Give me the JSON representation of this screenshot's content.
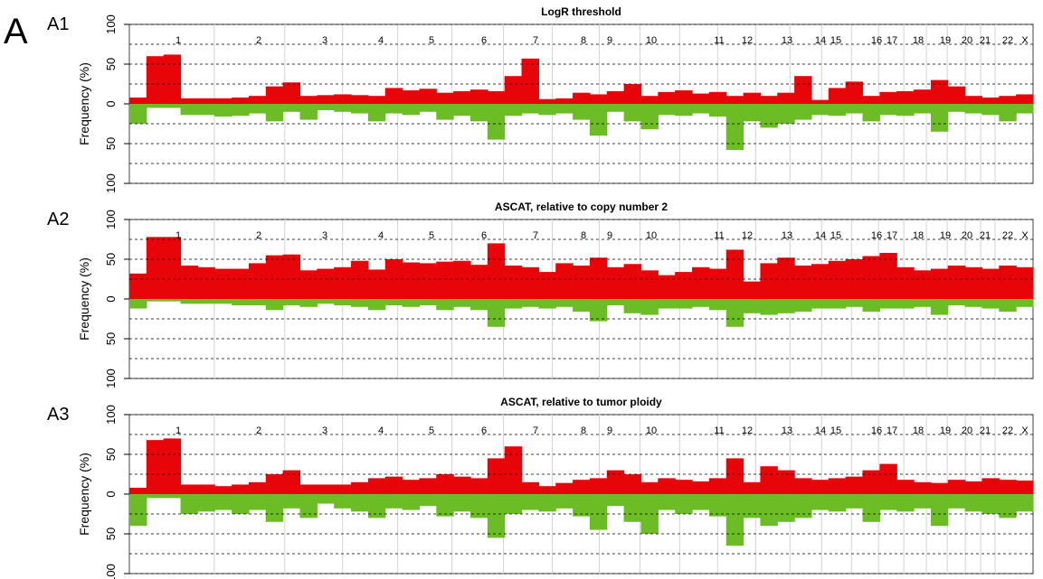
{
  "figure_letter": "A",
  "colors": {
    "gain": "#e8050a",
    "loss": "#6cbd25",
    "grid": "#000000",
    "chrom_sep": "#d3d3d3",
    "frame": "#444444"
  },
  "chart_data": [
    {
      "panel": "A1",
      "type": "area",
      "title": "LogR threshold",
      "ylabel": "Frequency (%)",
      "ylim": [
        -100,
        100
      ],
      "yticks": [
        "100",
        "50",
        "0",
        "50",
        "100"
      ],
      "dashed_grid": [
        -100,
        -75,
        -50,
        -25,
        25,
        50,
        75,
        100
      ],
      "chromosomes": [
        "1",
        "2",
        "3",
        "4",
        "5",
        "6",
        "7",
        "8",
        "9",
        "10",
        "11",
        "12",
        "13",
        "14",
        "15",
        "16",
        "17",
        "18",
        "19",
        "20",
        "21",
        "22",
        "X"
      ],
      "gain": [
        8,
        60,
        62,
        7,
        7,
        7,
        8,
        10,
        22,
        27,
        10,
        11,
        12,
        11,
        10,
        20,
        17,
        19,
        14,
        16,
        18,
        16,
        35,
        57,
        6,
        7,
        14,
        12,
        16,
        25,
        10,
        15,
        17,
        13,
        15,
        10,
        14,
        10,
        14,
        35,
        5,
        20,
        28,
        10,
        15,
        16,
        18,
        30,
        22,
        10,
        8,
        10,
        12
      ],
      "loss": [
        25,
        5,
        5,
        14,
        14,
        16,
        15,
        12,
        22,
        10,
        20,
        8,
        10,
        12,
        22,
        12,
        14,
        10,
        20,
        15,
        22,
        45,
        15,
        12,
        14,
        12,
        20,
        40,
        10,
        22,
        32,
        14,
        15,
        12,
        16,
        58,
        22,
        30,
        25,
        20,
        14,
        15,
        12,
        22,
        14,
        15,
        12,
        35,
        10,
        12,
        14,
        22,
        12
      ]
    },
    {
      "panel": "A2",
      "type": "area",
      "title": "ASCAT, relative to copy number 2",
      "ylabel": "Frequency (%)",
      "ylim": [
        -100,
        100
      ],
      "yticks": [
        "100",
        "50",
        "0",
        "50",
        "100"
      ],
      "dashed_grid": [
        -100,
        -75,
        -50,
        -25,
        25,
        50,
        75,
        100
      ],
      "chromosomes": [
        "1",
        "2",
        "3",
        "4",
        "5",
        "6",
        "7",
        "8",
        "9",
        "10",
        "11",
        "12",
        "13",
        "14",
        "15",
        "16",
        "17",
        "18",
        "19",
        "20",
        "21",
        "22",
        "X"
      ],
      "gain": [
        32,
        78,
        78,
        42,
        40,
        38,
        38,
        45,
        55,
        56,
        36,
        38,
        40,
        48,
        37,
        50,
        46,
        45,
        47,
        48,
        43,
        70,
        42,
        40,
        34,
        45,
        42,
        52,
        40,
        44,
        36,
        30,
        34,
        40,
        38,
        62,
        22,
        45,
        52,
        42,
        44,
        48,
        50,
        54,
        58,
        40,
        36,
        38,
        42,
        40,
        38,
        42,
        40
      ],
      "loss": [
        12,
        3,
        3,
        6,
        6,
        6,
        8,
        8,
        14,
        8,
        10,
        6,
        8,
        10,
        14,
        8,
        10,
        8,
        14,
        10,
        14,
        35,
        12,
        10,
        12,
        10,
        16,
        28,
        8,
        18,
        20,
        12,
        12,
        10,
        14,
        35,
        18,
        20,
        18,
        16,
        12,
        12,
        10,
        16,
        12,
        12,
        10,
        20,
        8,
        10,
        12,
        16,
        10
      ]
    },
    {
      "panel": "A3",
      "type": "area",
      "title": "ASCAT, relative to tumor ploidy",
      "ylabel": "Frequency (%)",
      "ylim": [
        -100,
        100
      ],
      "yticks": [
        "100",
        "50",
        "0",
        "50",
        "100"
      ],
      "dashed_grid": [
        -100,
        -75,
        -50,
        -25,
        25,
        50,
        75,
        100
      ],
      "chromosomes": [
        "1",
        "2",
        "3",
        "4",
        "5",
        "6",
        "7",
        "8",
        "9",
        "10",
        "11",
        "12",
        "13",
        "14",
        "15",
        "16",
        "17",
        "18",
        "19",
        "20",
        "21",
        "22",
        "X"
      ],
      "gain": [
        8,
        68,
        70,
        12,
        12,
        10,
        12,
        15,
        25,
        30,
        12,
        12,
        12,
        15,
        20,
        22,
        18,
        20,
        25,
        22,
        20,
        45,
        60,
        15,
        10,
        14,
        18,
        20,
        30,
        25,
        15,
        20,
        18,
        16,
        20,
        45,
        15,
        35,
        30,
        20,
        18,
        20,
        22,
        30,
        38,
        18,
        15,
        14,
        18,
        16,
        20,
        18,
        17
      ],
      "loss": [
        40,
        5,
        5,
        25,
        22,
        20,
        25,
        20,
        35,
        18,
        30,
        12,
        18,
        22,
        30,
        18,
        20,
        15,
        28,
        22,
        30,
        55,
        25,
        20,
        22,
        18,
        28,
        45,
        15,
        35,
        50,
        20,
        25,
        20,
        28,
        65,
        30,
        40,
        35,
        30,
        20,
        22,
        18,
        35,
        20,
        22,
        18,
        40,
        18,
        22,
        25,
        30,
        22
      ]
    }
  ]
}
